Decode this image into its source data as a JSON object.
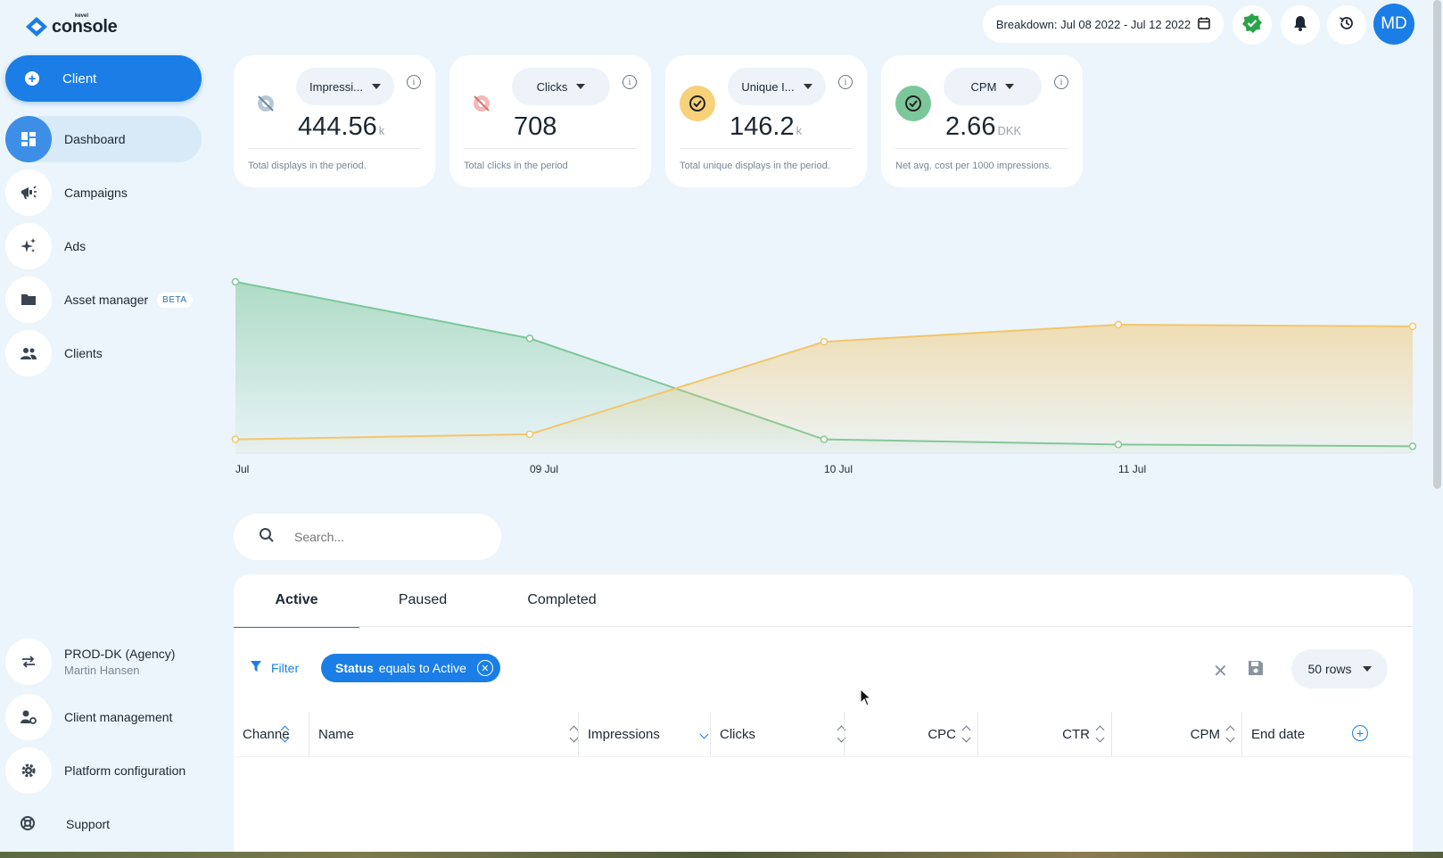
{
  "app": {
    "brand": "console",
    "brand_small": "kevel"
  },
  "sidebar": {
    "client_button": "Client",
    "items": [
      {
        "label": "Dashboard",
        "icon": "dashboard-icon"
      },
      {
        "label": "Campaigns",
        "icon": "megaphone-icon"
      },
      {
        "label": "Ads",
        "icon": "sparkle-icon"
      },
      {
        "label": "Asset manager",
        "icon": "folder-icon",
        "badge": "BETA"
      },
      {
        "label": "Clients",
        "icon": "people-icon"
      }
    ],
    "bottom": [
      {
        "label": "PROD-DK (Agency)",
        "sub": "Martin Hansen",
        "icon": "swap-icon"
      },
      {
        "label": "Client management",
        "icon": "user-gear-icon"
      },
      {
        "label": "Platform configuration",
        "icon": "gear-icon"
      },
      {
        "label": "Support",
        "icon": "lifebuoy-icon"
      }
    ]
  },
  "header": {
    "breakdown": "Breakdown: Jul 08 2022 - Jul 12 2022",
    "avatar": "MD",
    "status_color": "#2aa34a"
  },
  "kpis": [
    {
      "metric": "Impressi...",
      "value": "444.56",
      "unit": "k",
      "desc": "Total displays in the period."
    },
    {
      "metric": "Clicks",
      "value": "708",
      "unit": "",
      "desc": "Total clicks in the period"
    },
    {
      "metric": "Unique I...",
      "value": "146.2",
      "unit": "k",
      "desc": "Total unique displays in the period."
    },
    {
      "metric": "CPM",
      "value": "2.66",
      "unit": "DKK",
      "desc": "Net avg. cost per 1000 impressions."
    }
  ],
  "chart_data": {
    "type": "area",
    "categories": [
      "Jul",
      "09 Jul",
      "10 Jul",
      "11 Jul",
      ""
    ],
    "series": [
      {
        "color": "#7cc79a",
        "values": [
          100,
          67,
          8,
          5,
          4
        ]
      },
      {
        "color": "#f2c66d",
        "values": [
          8,
          11,
          65,
          75,
          74
        ]
      }
    ],
    "ylim": [
      0,
      100
    ],
    "grid": false
  },
  "search": {
    "placeholder": "Search..."
  },
  "tabs": [
    "Active",
    "Paused",
    "Completed"
  ],
  "filter": {
    "label": "Filter",
    "chip_field": "Status",
    "chip_rest": "equals to Active"
  },
  "rows_select": "50 rows",
  "table": {
    "columns": [
      "Channel",
      "Name",
      "Impressions",
      "Clicks",
      "CPC",
      "CTR",
      "CPM",
      "End date"
    ]
  },
  "colors": {
    "accent": "#1a7ee6",
    "green": "#7cc79a",
    "yellow": "#f2c66d"
  }
}
